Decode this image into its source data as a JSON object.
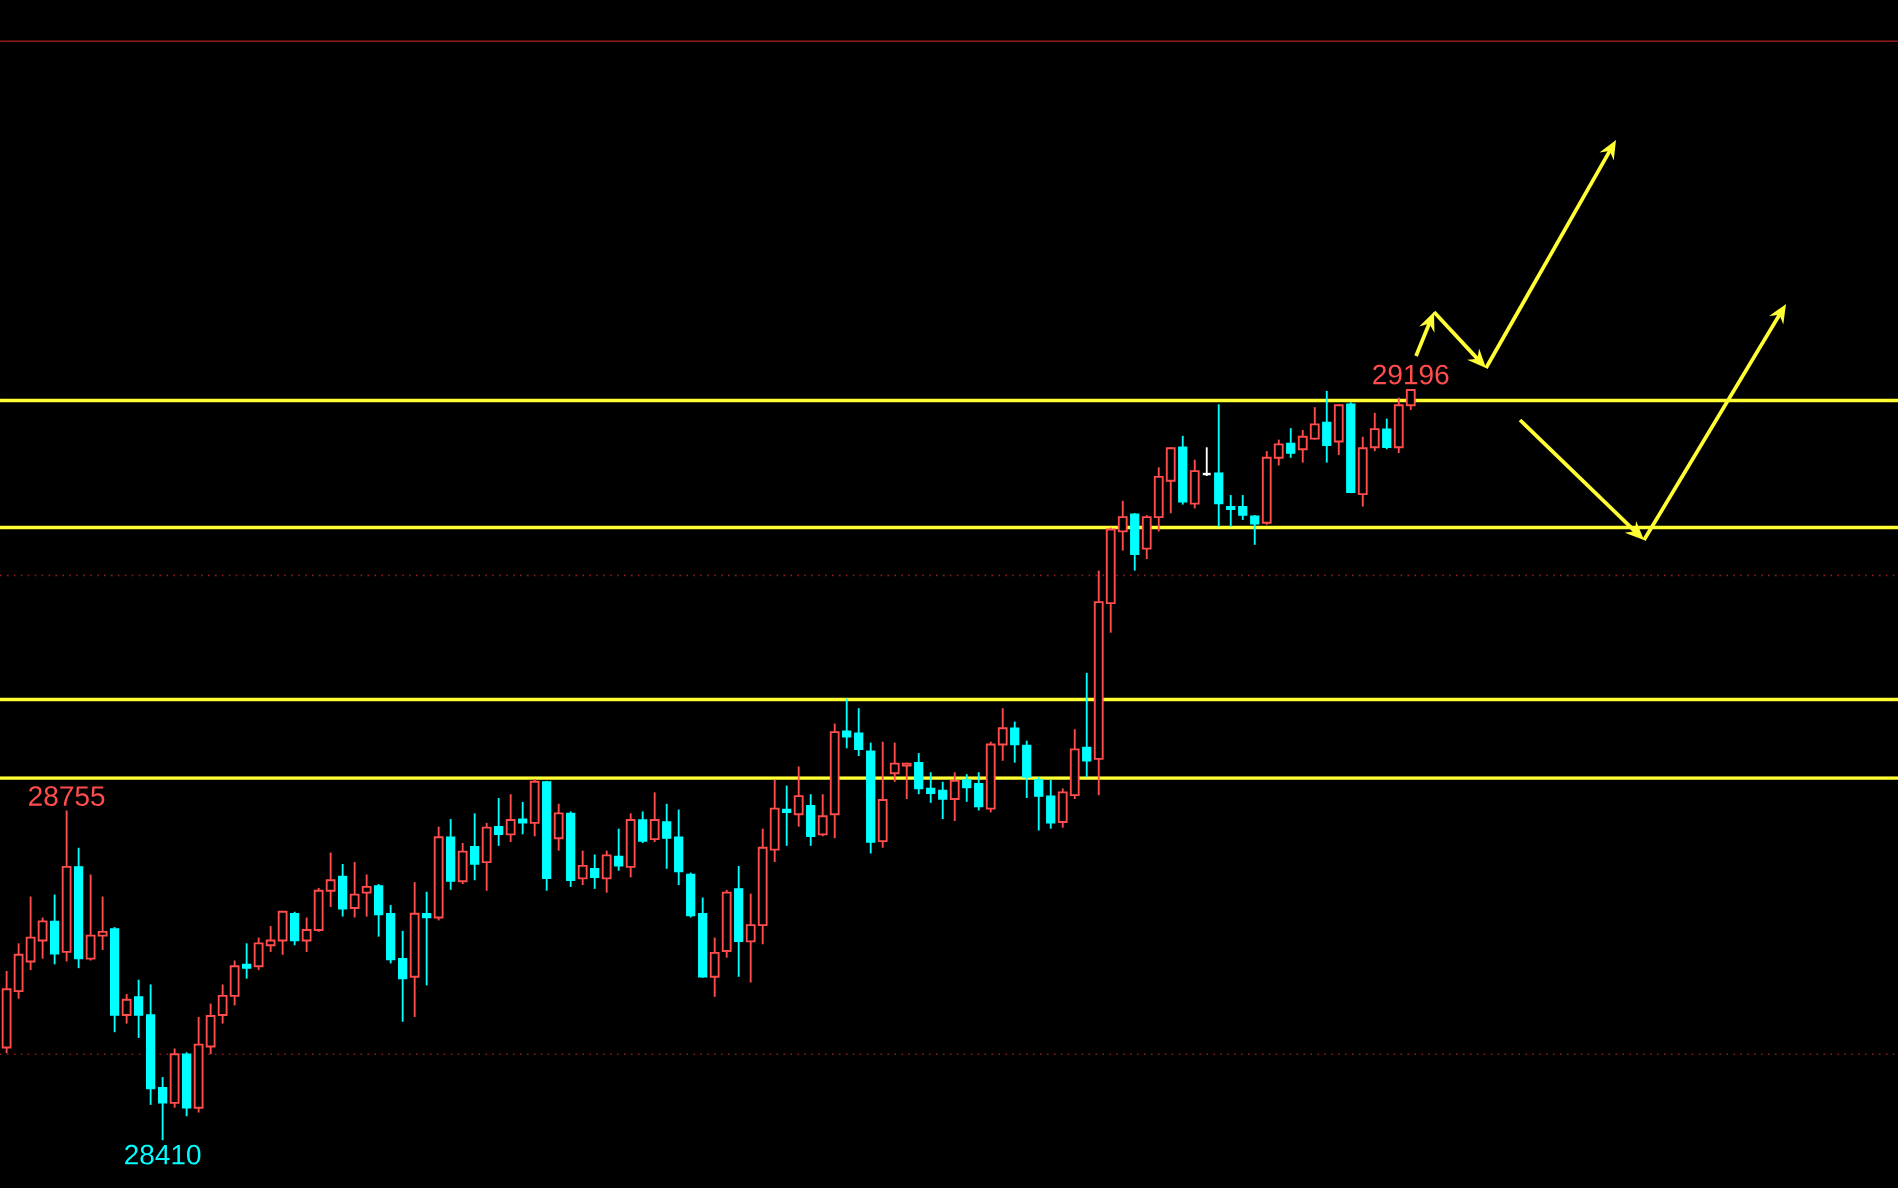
{
  "chart_data": {
    "type": "candlestick",
    "categories": [
      null,
      null,
      null,
      null,
      null,
      null,
      null,
      null,
      null,
      null,
      null,
      null,
      null,
      null,
      null,
      null,
      null,
      null,
      null,
      null,
      null,
      null,
      null,
      null,
      null,
      null,
      null,
      null,
      null,
      null,
      null,
      null,
      null,
      null,
      null,
      null,
      null,
      null,
      null,
      null,
      null,
      null,
      null,
      null,
      null,
      null,
      null,
      null,
      null,
      null,
      null,
      null,
      null,
      null,
      null,
      null,
      null,
      null,
      null,
      null,
      null,
      null,
      null,
      null,
      null,
      null,
      null,
      null,
      null,
      null,
      null,
      null,
      null,
      null,
      null,
      null,
      null,
      null,
      null,
      null,
      null,
      null,
      null,
      null,
      null,
      null,
      null,
      null,
      null,
      null,
      null,
      null,
      null,
      null,
      null,
      null,
      null,
      null,
      null,
      null,
      null,
      null,
      null,
      null,
      null,
      null,
      null,
      null,
      null,
      null,
      null,
      null,
      null,
      null,
      null,
      null,
      null,
      null
    ],
    "ohlc": [
      [
        28507,
        28587,
        28501,
        28568
      ],
      [
        28566,
        28616,
        28558,
        28604
      ],
      [
        28597,
        28665,
        28588,
        28622
      ],
      [
        28619,
        28643,
        28600,
        28639
      ],
      [
        28639,
        28667,
        28594,
        28605
      ],
      [
        28607,
        28755,
        28597,
        28696
      ],
      [
        28696,
        28716,
        28590,
        28600
      ],
      [
        28600,
        28688,
        28598,
        28624
      ],
      [
        28624,
        28665,
        28609,
        28628
      ],
      [
        28631,
        28633,
        28523,
        28541
      ],
      [
        28541,
        28563,
        28532,
        28557
      ],
      [
        28560,
        28578,
        28517,
        28541
      ],
      [
        28541,
        28573,
        28447,
        28464
      ],
      [
        28465,
        28476,
        28410,
        28449
      ],
      [
        28449,
        28506,
        28444,
        28500
      ],
      [
        28500,
        28502,
        28435,
        28444
      ],
      [
        28444,
        28539,
        28439,
        28510
      ],
      [
        28508,
        28553,
        28500,
        28540
      ],
      [
        28541,
        28573,
        28532,
        28561
      ],
      [
        28561,
        28598,
        28551,
        28592
      ],
      [
        28594,
        28616,
        28579,
        28590
      ],
      [
        28592,
        28622,
        28588,
        28616
      ],
      [
        28614,
        28634,
        28607,
        28619
      ],
      [
        28619,
        28650,
        28604,
        28649
      ],
      [
        28647,
        28649,
        28614,
        28619
      ],
      [
        28619,
        28643,
        28607,
        28630
      ],
      [
        28630,
        28674,
        28628,
        28671
      ],
      [
        28671,
        28711,
        28654,
        28682
      ],
      [
        28686,
        28699,
        28644,
        28652
      ],
      [
        28653,
        28701,
        28643,
        28667
      ],
      [
        28669,
        28688,
        28644,
        28675
      ],
      [
        28676,
        28678,
        28623,
        28646
      ],
      [
        28647,
        28656,
        28595,
        28599
      ],
      [
        28600,
        28629,
        28534,
        28579
      ],
      [
        28581,
        28680,
        28539,
        28647
      ],
      [
        28647,
        28670,
        28572,
        28643
      ],
      [
        28643,
        28738,
        28640,
        28727
      ],
      [
        28727,
        28746,
        28672,
        28681
      ],
      [
        28681,
        28721,
        28678,
        28712
      ],
      [
        28717,
        28752,
        28682,
        28699
      ],
      [
        28701,
        28742,
        28671,
        28737
      ],
      [
        28738,
        28768,
        28718,
        28730
      ],
      [
        28730,
        28772,
        28722,
        28745
      ],
      [
        28746,
        28764,
        28730,
        28742
      ],
      [
        28742,
        28788,
        28728,
        28785
      ],
      [
        28785,
        28786,
        28671,
        28684
      ],
      [
        28726,
        28762,
        28713,
        28752
      ],
      [
        28752,
        28754,
        28675,
        28682
      ],
      [
        28684,
        28713,
        28677,
        28697
      ],
      [
        28694,
        28709,
        28673,
        28685
      ],
      [
        28684,
        28713,
        28669,
        28708
      ],
      [
        28707,
        28736,
        28692,
        28697
      ],
      [
        28696,
        28752,
        28685,
        28745
      ],
      [
        28745,
        28754,
        28721,
        28723
      ],
      [
        28725,
        28774,
        28722,
        28745
      ],
      [
        28743,
        28762,
        28694,
        28726
      ],
      [
        28727,
        28756,
        28677,
        28691
      ],
      [
        28688,
        28690,
        28643,
        28645
      ],
      [
        28647,
        28664,
        28580,
        28581
      ],
      [
        28581,
        28622,
        28560,
        28606
      ],
      [
        28608,
        28672,
        28601,
        28669
      ],
      [
        28673,
        28697,
        28581,
        28618
      ],
      [
        28618,
        28668,
        28575,
        28635
      ],
      [
        28635,
        28736,
        28615,
        28716
      ],
      [
        28714,
        28787,
        28701,
        28757
      ],
      [
        28756,
        28781,
        28718,
        28753
      ],
      [
        28751,
        28801,
        28738,
        28770
      ],
      [
        28760,
        28772,
        28718,
        28728
      ],
      [
        28730,
        28772,
        28728,
        28749
      ],
      [
        28751,
        28846,
        28726,
        28837
      ],
      [
        28838,
        28872,
        28820,
        28832
      ],
      [
        28836,
        28862,
        28812,
        28819
      ],
      [
        28817,
        28826,
        28710,
        28722
      ],
      [
        28723,
        28827,
        28716,
        28766
      ],
      [
        28794,
        28826,
        28785,
        28804
      ],
      [
        28802,
        28805,
        28767,
        28804
      ],
      [
        28805,
        28815,
        28772,
        28778
      ],
      [
        28778,
        28795,
        28763,
        28773
      ],
      [
        28776,
        28785,
        28746,
        28767
      ],
      [
        28767,
        28795,
        28744,
        28786
      ],
      [
        28787,
        28793,
        28764,
        28779
      ],
      [
        28783,
        28795,
        28755,
        28759
      ],
      [
        28757,
        28827,
        28753,
        28824
      ],
      [
        28824,
        28862,
        28807,
        28841
      ],
      [
        28841,
        28848,
        28805,
        28824
      ],
      [
        28823,
        28828,
        28768,
        28790
      ],
      [
        28787,
        28790,
        28734,
        28770
      ],
      [
        28770,
        28787,
        28736,
        28742
      ],
      [
        28743,
        28778,
        28737,
        28774
      ],
      [
        28771,
        28840,
        28767,
        28819
      ],
      [
        28821,
        28899,
        28790,
        28807
      ],
      [
        28809,
        29006,
        28771,
        28973
      ],
      [
        28972,
        29051,
        28941,
        29049
      ],
      [
        29047,
        29079,
        29027,
        29062
      ],
      [
        29065,
        29066,
        29006,
        29023
      ],
      [
        29029,
        29064,
        29018,
        29062
      ],
      [
        29062,
        29114,
        29047,
        29104
      ],
      [
        29100,
        29135,
        29066,
        29134
      ],
      [
        29135,
        29147,
        29075,
        29078
      ],
      [
        29076,
        29122,
        29071,
        29110
      ],
      [
        29107,
        29135,
        29105,
        29107
      ],
      [
        29108,
        29180,
        29052,
        29076
      ],
      [
        29073,
        29085,
        29052,
        29070
      ],
      [
        29073,
        29085,
        29059,
        29064
      ],
      [
        29063,
        29064,
        29033,
        29055
      ],
      [
        29056,
        29131,
        29054,
        29124
      ],
      [
        29124,
        29143,
        29116,
        29138
      ],
      [
        29139,
        29155,
        29124,
        29129
      ],
      [
        29133,
        29153,
        29119,
        29146
      ],
      [
        29144,
        29177,
        29143,
        29159
      ],
      [
        29161,
        29194,
        29119,
        29137
      ],
      [
        29141,
        29180,
        29127,
        29179
      ],
      [
        29180,
        29182,
        29087,
        29088
      ],
      [
        29086,
        29146,
        29073,
        29134
      ],
      [
        29135,
        29171,
        29131,
        29154
      ],
      [
        29154,
        29165,
        29133,
        29135
      ],
      [
        29135,
        29187,
        29129,
        29179
      ],
      [
        29179,
        29196,
        29174,
        29195
      ]
    ],
    "colors": [
      "#ff4d4d",
      "#ff4d4d",
      "#ff4d4d",
      "#ff4d4d",
      "#00ffff",
      "#ff4d4d",
      "#00ffff",
      "#ff4d4d",
      "#ff4d4d",
      "#00ffff",
      "#ff4d4d",
      "#00ffff",
      "#00ffff",
      "#00ffff",
      "#ff4d4d",
      "#00ffff",
      "#ff4d4d",
      "#ff4d4d",
      "#ff4d4d",
      "#ff4d4d",
      "#00ffff",
      "#ff4d4d",
      "#ff4d4d",
      "#ff4d4d",
      "#00ffff",
      "#ff4d4d",
      "#ff4d4d",
      "#ff4d4d",
      "#00ffff",
      "#ff4d4d",
      "#ff4d4d",
      "#00ffff",
      "#00ffff",
      "#00ffff",
      "#ff4d4d",
      "#00ffff",
      "#ff4d4d",
      "#00ffff",
      "#ff4d4d",
      "#00ffff",
      "#ff4d4d",
      "#00ffff",
      "#ff4d4d",
      "#00ffff",
      "#ff4d4d",
      "#00ffff",
      "#ff4d4d",
      "#00ffff",
      "#ff4d4d",
      "#00ffff",
      "#ff4d4d",
      "#00ffff",
      "#ff4d4d",
      "#00ffff",
      "#ff4d4d",
      "#00ffff",
      "#00ffff",
      "#00ffff",
      "#00ffff",
      "#ff4d4d",
      "#ff4d4d",
      "#00ffff",
      "#ff4d4d",
      "#ff4d4d",
      "#ff4d4d",
      "#00ffff",
      "#ff4d4d",
      "#00ffff",
      "#ff4d4d",
      "#ff4d4d",
      "#00ffff",
      "#00ffff",
      "#00ffff",
      "#ff4d4d",
      "#ff4d4d",
      "#ff4d4d",
      "#00ffff",
      "#00ffff",
      "#00ffff",
      "#ff4d4d",
      "#00ffff",
      "#00ffff",
      "#ff4d4d",
      "#ff4d4d",
      "#00ffff",
      "#00ffff",
      "#00ffff",
      "#00ffff",
      "#ff4d4d",
      "#ff4d4d",
      "#00ffff",
      "#ff4d4d",
      "#ff4d4d",
      "#ff4d4d",
      "#00ffff",
      "#ff4d4d",
      "#ff4d4d",
      "#ff4d4d",
      "#00ffff",
      "#ff4d4d",
      "#ffffff",
      "#00ffff",
      "#00ffff",
      "#00ffff",
      "#00ffff",
      "#ff4d4d",
      "#ff4d4d",
      "#00ffff",
      "#ff4d4d",
      "#ff4d4d",
      "#00ffff",
      "#ff4d4d",
      "#00ffff",
      "#ff4d4d",
      "#ff4d4d",
      "#00ffff",
      "#ff4d4d",
      "#ff4d4d"
    ],
    "ylim": [
      28360,
      29603
    ],
    "tick_labels": false,
    "ref_lines": [
      {
        "axis": "y",
        "value": 29184,
        "color": "#ffff33"
      },
      {
        "axis": "y",
        "value": 29051,
        "color": "#ffff33"
      },
      {
        "axis": "y",
        "value": 28871,
        "color": "#ffff33"
      },
      {
        "axis": "y",
        "value": 28789,
        "color": "#ffff33"
      },
      {
        "axis": "y",
        "value": 29560,
        "color": "#8b1a1a"
      },
      {
        "axis": "y",
        "value": 29001,
        "color": "#8b1a1a",
        "line_style": "dotted"
      },
      {
        "axis": "y",
        "value": 28500,
        "color": "#8b1a1a",
        "line_style": "dotted"
      }
    ],
    "annotations": [
      {
        "text": "28755",
        "y": 28755
      },
      {
        "text": "29196",
        "y": 29196
      },
      {
        "text": "28410",
        "y": 28410
      }
    ]
  }
}
